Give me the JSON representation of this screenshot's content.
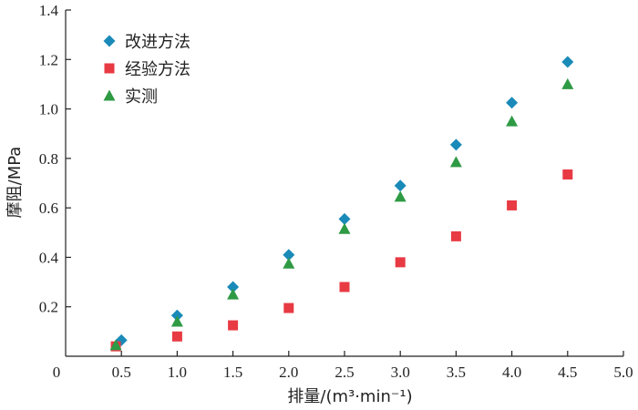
{
  "chart_data": {
    "type": "scatter",
    "xlabel": "排量/(m³·min⁻¹)",
    "ylabel": "摩阻/MPa",
    "xlim": [
      0,
      5.0
    ],
    "ylim": [
      0,
      1.4
    ],
    "x_ticks": [
      0,
      0.5,
      1.0,
      1.5,
      2.0,
      2.5,
      3.0,
      3.5,
      4.0,
      4.5,
      5.0
    ],
    "x_tick_labels": [
      "0",
      "0.5",
      "1.0",
      "1.5",
      "2.0",
      "2.5",
      "3.0",
      "3.5",
      "4.0",
      "4.5",
      "5.0"
    ],
    "y_ticks": [
      0.2,
      0.4,
      0.6,
      0.8,
      1.0,
      1.2,
      1.4
    ],
    "y_tick_labels": [
      "0.2",
      "0.4",
      "0.6",
      "0.8",
      "1.0",
      "1.2",
      "1.4"
    ],
    "grid": false,
    "legend_position": "top-left",
    "series": [
      {
        "name": "改进方法",
        "marker": "diamond",
        "color": "#1a8ab8",
        "x": [
          0.5,
          1.0,
          1.5,
          2.0,
          2.5,
          3.0,
          3.5,
          4.0,
          4.5
        ],
        "y": [
          0.065,
          0.165,
          0.28,
          0.41,
          0.555,
          0.69,
          0.855,
          1.025,
          1.19
        ]
      },
      {
        "name": "经验方法",
        "marker": "square",
        "color": "#e83a43",
        "x": [
          0.45,
          1.0,
          1.5,
          2.0,
          2.5,
          3.0,
          3.5,
          4.0,
          4.5
        ],
        "y": [
          0.04,
          0.08,
          0.125,
          0.195,
          0.28,
          0.38,
          0.485,
          0.61,
          0.735
        ]
      },
      {
        "name": "实测",
        "marker": "triangle",
        "color": "#2f9a44",
        "x": [
          0.45,
          1.0,
          1.5,
          2.0,
          2.5,
          3.0,
          3.5,
          4.0,
          4.5
        ],
        "y": [
          0.045,
          0.14,
          0.25,
          0.375,
          0.515,
          0.645,
          0.785,
          0.95,
          1.1
        ]
      }
    ]
  }
}
